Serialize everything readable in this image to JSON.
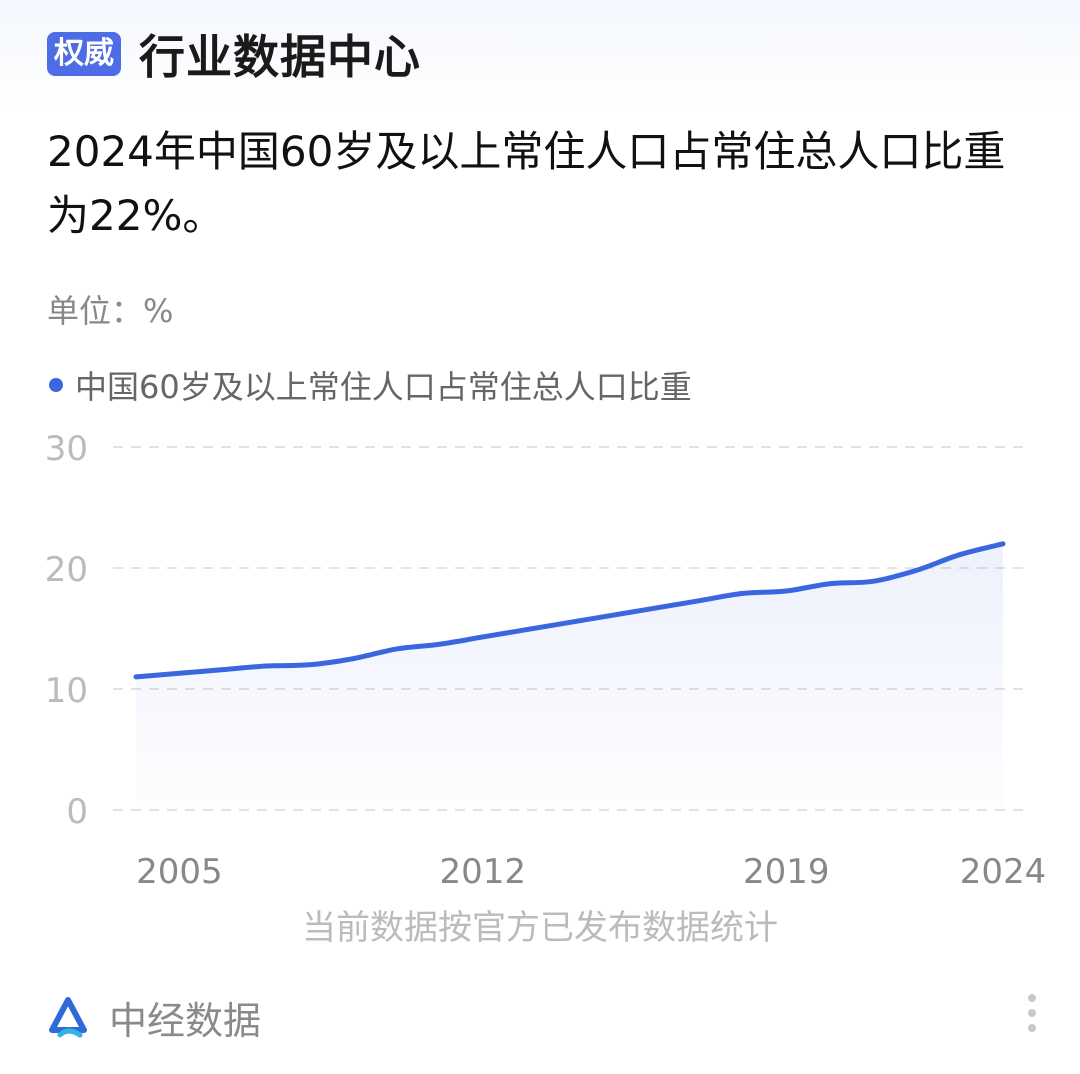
{
  "header": {
    "badge": "权威",
    "title": "行业数据中心"
  },
  "headline": "2024年中国60岁及以上常住人口占常住总人口比重为22%。",
  "unit_label": "单位：%",
  "footnote": "当前数据按官方已发布数据统计",
  "footer": {
    "brand": "中经数据",
    "logo_icon": "zhongjing-logo-icon",
    "more_icon": "more-vertical-icon"
  },
  "colors": {
    "line": "#3a67e0",
    "badge": "#4d6ce6"
  },
  "chart_data": {
    "type": "area",
    "legend": [
      "中国60岁及以上常住人口占常住总人口比重"
    ],
    "legend_position": "top-left",
    "grid": true,
    "ylim": [
      0,
      30
    ],
    "yticks": [
      0,
      10,
      20,
      30
    ],
    "xticks": [
      2005,
      2012,
      2019,
      2024
    ],
    "x": [
      2004,
      2005,
      2006,
      2007,
      2008,
      2009,
      2010,
      2011,
      2012,
      2013,
      2014,
      2015,
      2016,
      2017,
      2018,
      2019,
      2020,
      2021,
      2022,
      2023,
      2024
    ],
    "series": [
      {
        "name": "中国60岁及以上常住人口占常住总人口比重",
        "values": [
          11.0,
          11.3,
          11.6,
          11.9,
          12.0,
          12.5,
          13.3,
          13.7,
          14.3,
          14.9,
          15.5,
          16.1,
          16.7,
          17.3,
          17.9,
          18.1,
          18.7,
          18.9,
          19.8,
          21.1,
          22.0
        ]
      }
    ]
  }
}
